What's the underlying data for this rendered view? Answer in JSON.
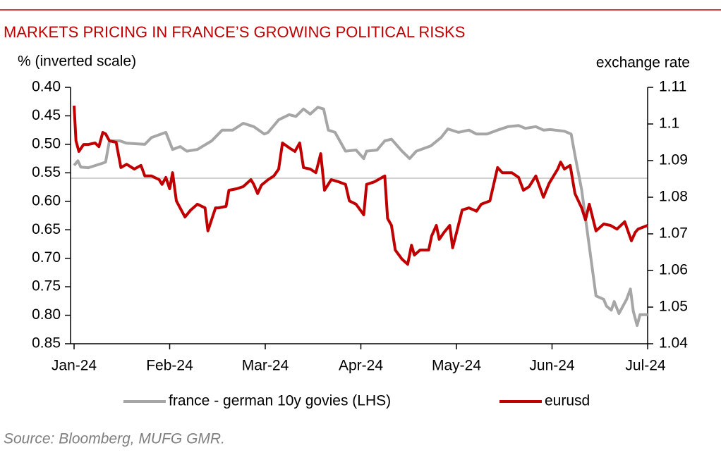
{
  "chart_data": {
    "type": "line",
    "title": "MARKETS PRICING IN FRANCE’S GROWING POLITICAL RISKS",
    "y_axis_label": "% (inverted scale)",
    "y2_axis_label": "exchange rate",
    "source": "Source: Bloomberg, MUFG GMR.",
    "xlim": [
      0,
      6
    ],
    "xticks": [
      {
        "value": 0,
        "label": "Jan-24"
      },
      {
        "value": 1,
        "label": "Feb-24"
      },
      {
        "value": 2,
        "label": "Mar-24"
      },
      {
        "value": 3,
        "label": "Apr-24"
      },
      {
        "value": 4,
        "label": "May-24"
      },
      {
        "value": 5,
        "label": "Jun-24"
      },
      {
        "value": 6,
        "label": "Jul-24"
      }
    ],
    "ylim": [
      0.4,
      0.85
    ],
    "y_inverted": true,
    "yticks": [
      {
        "value": 0.4,
        "label": "0.40"
      },
      0.45,
      {
        "value": 0.5,
        "label": "0.50"
      },
      0.55,
      {
        "value": 0.6,
        "label": "0.60"
      },
      0.65,
      {
        "value": 0.7,
        "label": "0.70"
      },
      0.75,
      {
        "value": 0.8,
        "label": "0.80"
      },
      0.85
    ],
    "y2lim": [
      1.04,
      1.11
    ],
    "y2ticks": [
      1.11,
      1.1,
      1.09,
      1.08,
      1.07,
      1.06,
      1.05,
      1.04
    ],
    "series": [
      {
        "name": "france - german 10y govies (LHS)",
        "color": "#a6a6a6",
        "axis": "y",
        "x": [
          0,
          0.04,
          0.07,
          0.15,
          0.3,
          0.33,
          0.37,
          0.48,
          0.55,
          0.74,
          0.81,
          0.96,
          1.03,
          1.11,
          1.18,
          1.29,
          1.44,
          1.55,
          1.66,
          1.77,
          1.88,
          1.99,
          2.03,
          2.14,
          2.25,
          2.32,
          2.4,
          2.47,
          2.55,
          2.61,
          2.66,
          2.73,
          2.84,
          2.95,
          3.03,
          3.06,
          3.17,
          3.25,
          3.32,
          3.43,
          3.51,
          3.58,
          3.73,
          3.84,
          3.91,
          4.02,
          4.13,
          4.21,
          4.32,
          4.43,
          4.54,
          4.65,
          4.72,
          4.83,
          4.91,
          4.98,
          5.13,
          5.2,
          5.24,
          5.31,
          5.39,
          5.46,
          5.54,
          5.57,
          5.62,
          5.65,
          5.7,
          5.78,
          5.82,
          5.85,
          5.89,
          5.92,
          6.0
        ],
        "values": [
          0.537,
          0.529,
          0.54,
          0.541,
          0.533,
          0.531,
          0.494,
          0.494,
          0.498,
          0.5,
          0.488,
          0.479,
          0.509,
          0.504,
          0.512,
          0.509,
          0.494,
          0.475,
          0.475,
          0.463,
          0.469,
          0.482,
          0.479,
          0.457,
          0.448,
          0.451,
          0.438,
          0.447,
          0.435,
          0.438,
          0.475,
          0.479,
          0.512,
          0.51,
          0.525,
          0.512,
          0.51,
          0.494,
          0.491,
          0.512,
          0.525,
          0.512,
          0.503,
          0.488,
          0.473,
          0.479,
          0.475,
          0.482,
          0.482,
          0.475,
          0.469,
          0.467,
          0.472,
          0.469,
          0.475,
          0.474,
          0.477,
          0.482,
          0.519,
          0.58,
          0.679,
          0.766,
          0.772,
          0.784,
          0.791,
          0.776,
          0.797,
          0.772,
          0.754,
          0.793,
          0.818,
          0.799,
          0.799
        ]
      },
      {
        "name": "eurusd",
        "color": "#c00000",
        "axis": "y2",
        "x": [
          0,
          0.02,
          0.05,
          0.1,
          0.15,
          0.22,
          0.26,
          0.3,
          0.33,
          0.37,
          0.44,
          0.49,
          0.55,
          0.63,
          0.7,
          0.74,
          0.81,
          0.89,
          0.92,
          0.96,
          1.0,
          1.03,
          1.07,
          1.16,
          1.22,
          1.29,
          1.37,
          1.4,
          1.48,
          1.51,
          1.59,
          1.62,
          1.7,
          1.77,
          1.85,
          1.88,
          1.92,
          1.96,
          2.03,
          2.09,
          2.14,
          2.18,
          2.25,
          2.31,
          2.36,
          2.4,
          2.47,
          2.53,
          2.58,
          2.62,
          2.69,
          2.77,
          2.84,
          2.88,
          2.95,
          3.03,
          3.06,
          3.14,
          3.25,
          3.28,
          3.32,
          3.36,
          3.43,
          3.49,
          3.53,
          3.56,
          3.62,
          3.71,
          3.74,
          3.79,
          3.82,
          3.87,
          3.93,
          3.96,
          4.01,
          4.06,
          4.13,
          4.21,
          4.26,
          4.35,
          4.43,
          4.48,
          4.58,
          4.65,
          4.7,
          4.76,
          4.83,
          4.91,
          4.97,
          5.06,
          5.09,
          5.13,
          5.19,
          5.24,
          5.31,
          5.35,
          5.39,
          5.46,
          5.54,
          5.61,
          5.68,
          5.76,
          5.83,
          5.87,
          5.9,
          6.0
        ],
        "values": [
          1.105,
          1.0954,
          1.0925,
          1.0944,
          1.0944,
          1.0948,
          1.0938,
          1.0977,
          1.0973,
          1.0954,
          1.095,
          1.0881,
          1.089,
          1.0877,
          1.0887,
          1.0858,
          1.0858,
          1.0848,
          1.0835,
          1.0854,
          1.0823,
          1.0867,
          1.079,
          1.0746,
          1.0765,
          1.0781,
          1.0771,
          1.0708,
          1.0771,
          1.0771,
          1.0775,
          1.0819,
          1.0823,
          1.0829,
          1.0848,
          1.0835,
          1.081,
          1.0833,
          1.0848,
          1.0858,
          1.0877,
          1.0948,
          1.0935,
          1.0925,
          1.0948,
          1.0881,
          1.0877,
          1.0867,
          1.0919,
          1.0819,
          1.0848,
          1.0842,
          1.0835,
          1.079,
          1.0781,
          1.0752,
          1.0835,
          1.0842,
          1.0858,
          1.0742,
          1.0723,
          1.0656,
          1.0631,
          1.0617,
          1.0669,
          1.0642,
          1.0656,
          1.0656,
          1.0694,
          1.0723,
          1.0685,
          1.0704,
          1.0723,
          1.0662,
          1.0713,
          1.0765,
          1.0771,
          1.0762,
          1.0781,
          1.079,
          1.0881,
          1.0867,
          1.0867,
          1.0854,
          1.0819,
          1.0829,
          1.0858,
          1.08,
          1.0838,
          1.0877,
          1.0896,
          1.0877,
          1.0887,
          1.081,
          1.0771,
          1.0738,
          1.0781,
          1.0708,
          1.0727,
          1.0723,
          1.0713,
          1.0733,
          1.0681,
          1.0704,
          1.0713,
          1.0723
        ]
      }
    ]
  }
}
